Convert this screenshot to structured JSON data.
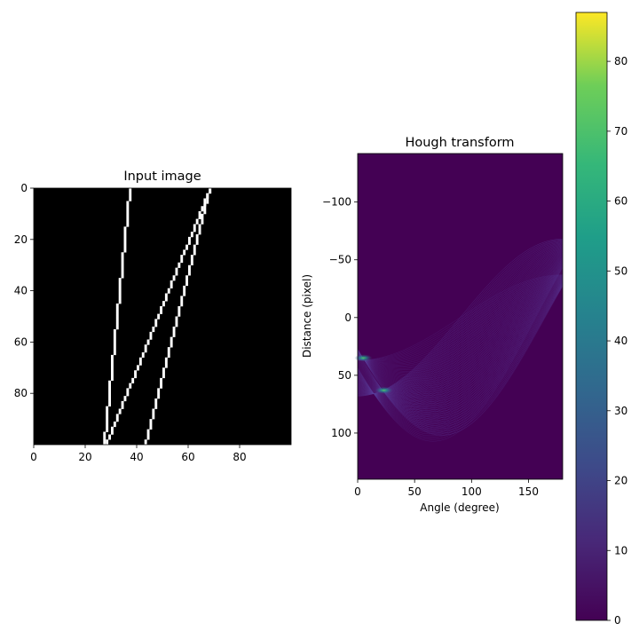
{
  "chart_data": [
    {
      "type": "heatmap",
      "title": "Input image",
      "xlabel": "",
      "ylabel": "",
      "xlim": [
        0,
        100
      ],
      "ylim": [
        100,
        0
      ],
      "x_ticks": [
        "0",
        "20",
        "40",
        "60",
        "80"
      ],
      "y_ticks": [
        "0",
        "20",
        "40",
        "60",
        "80"
      ],
      "colormap": "gray",
      "background_color": "#000000",
      "line_color": "#ffffff",
      "lines": [
        {
          "x_at_row_0": 37,
          "x_at_row_99": 27
        },
        {
          "x_at_row_0": 68,
          "x_at_row_99": 28
        },
        {
          "x_at_row_0": 68,
          "x_at_row_99": 43
        }
      ]
    },
    {
      "type": "heatmap",
      "title": "Hough transform",
      "xlabel": "Angle (degree)",
      "ylabel": "Distance (pixel)",
      "xlim": [
        0,
        180
      ],
      "ylim": [
        140,
        -142
      ],
      "x_ticks": [
        "0",
        "50",
        "100",
        "150"
      ],
      "y_ticks": [
        "−100",
        "−50",
        "0",
        "50",
        "100"
      ],
      "colormap": "viridis",
      "peaks": [
        {
          "angle_deg": 5,
          "distance_px": 35,
          "votes": 45
        },
        {
          "angle_deg": 23,
          "distance_px": 63,
          "votes": 45
        }
      ],
      "colorbar": {
        "vmin": 0,
        "vmax": 87,
        "ticks": [
          "0",
          "10",
          "20",
          "30",
          "40",
          "50",
          "60",
          "70",
          "80"
        ]
      }
    }
  ]
}
